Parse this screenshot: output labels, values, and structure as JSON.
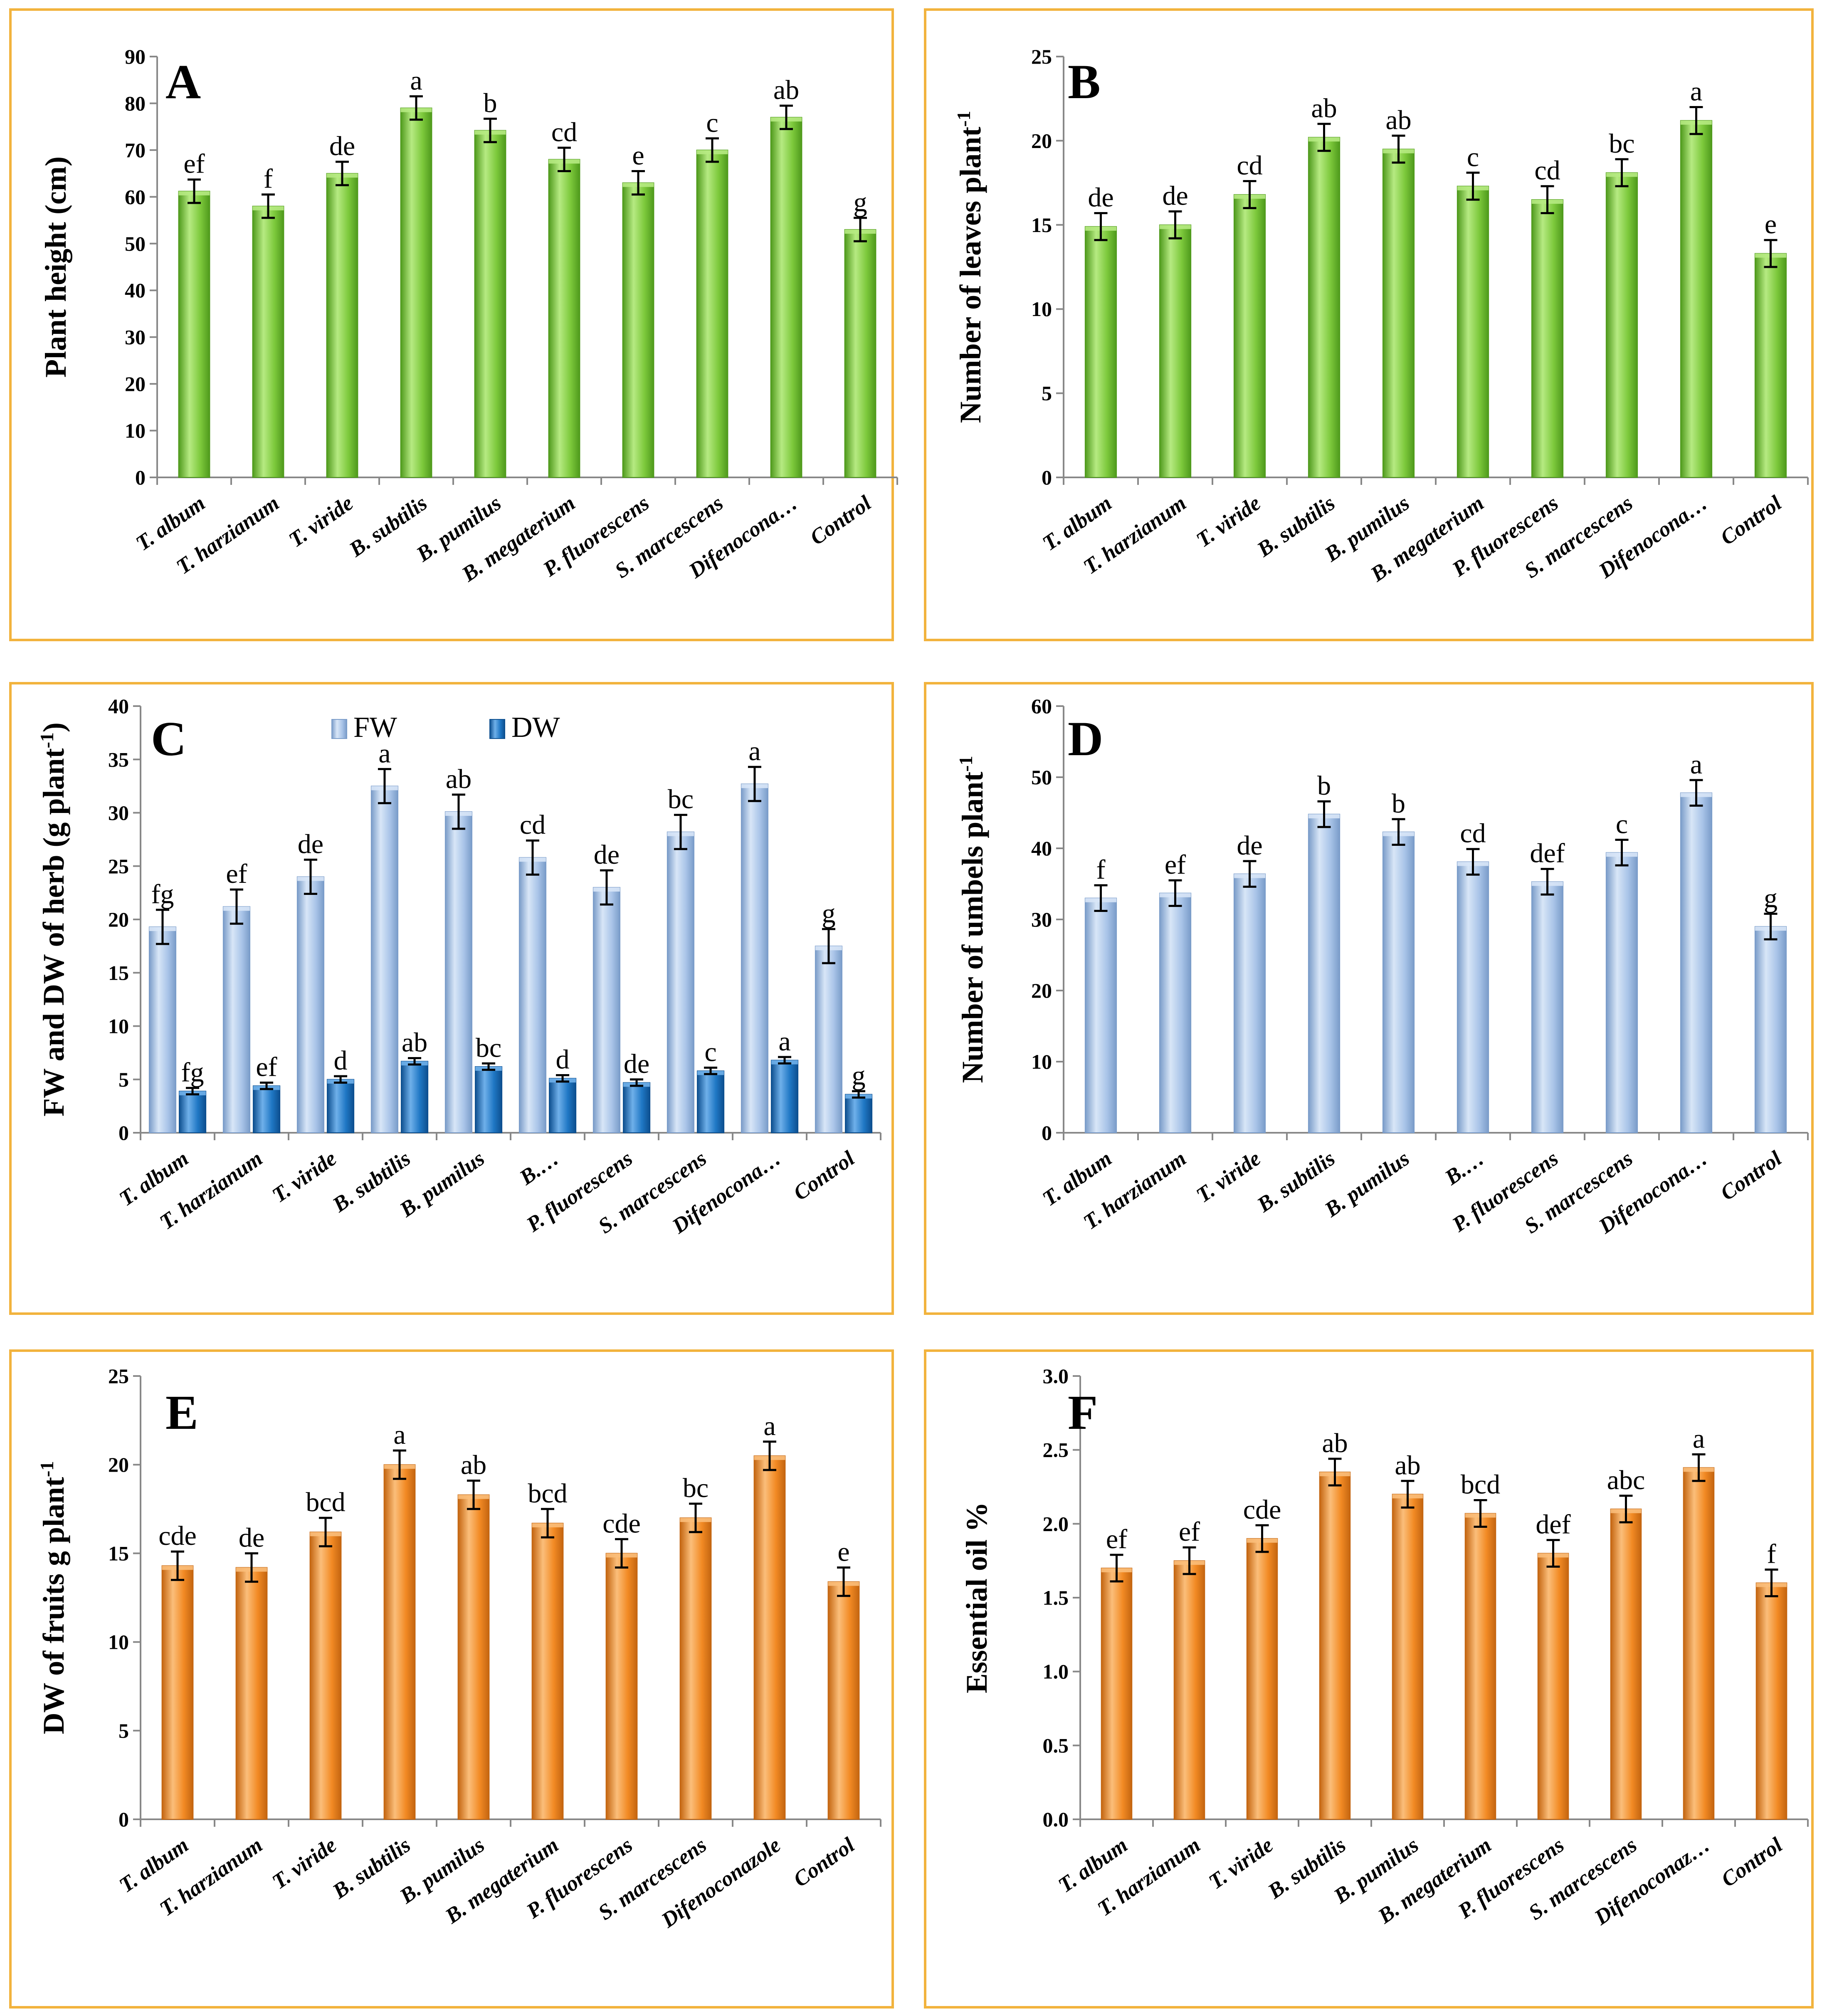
{
  "colors": {
    "green": "#7dc93c",
    "green_light": "#b6ea82",
    "green_dark": "#4f9a1c",
    "blue_fw": "#a9c4e8",
    "blue_fw_light": "#d8e6f7",
    "blue_fw_dark": "#7a9cc9",
    "blue_dw": "#1f77c4",
    "blue_dw_light": "#6fb0ea",
    "blue_dw_dark": "#0d4f8f",
    "orange": "#f28a24",
    "orange_light": "#fbbe7a",
    "orange_dark": "#c46510",
    "frame": "#f2b33d"
  },
  "chart_data": [
    {
      "id": "A",
      "panel_label": "A",
      "type": "bar",
      "ylabel": "Plant height (cm)",
      "ylim": [
        0,
        90
      ],
      "yticks": [
        0,
        10,
        20,
        30,
        40,
        50,
        60,
        70,
        80,
        90
      ],
      "tick_labels": [
        "0",
        "10",
        "20",
        "30",
        "40",
        "50",
        "60",
        "70",
        "80",
        "90"
      ],
      "categories": [
        "T. album",
        "T. harzianum",
        "T. viride",
        "B. subtilis",
        "B. pumilus",
        "B. megaterium",
        "P. fluorescens",
        "S. marcescens",
        "Difenocona…",
        "Control"
      ],
      "series": [
        {
          "name": "Plant height",
          "color": "green",
          "values": [
            61.2,
            58.0,
            65.0,
            79.0,
            74.2,
            68.0,
            63.0,
            70.0,
            77.0,
            53.0
          ],
          "errors": [
            2.5,
            2.5,
            2.5,
            2.5,
            2.5,
            2.5,
            2.5,
            2.5,
            2.5,
            2.5
          ],
          "letters": [
            "ef",
            "f",
            "de",
            "a",
            "b",
            "cd",
            "e",
            "c",
            "ab",
            "g"
          ]
        }
      ]
    },
    {
      "id": "B",
      "panel_label": "B",
      "type": "bar",
      "ylabel": "Number of leaves plant",
      "ylabel_sup": "-1",
      "ylim": [
        0,
        25
      ],
      "yticks": [
        0,
        5,
        10,
        15,
        20,
        25
      ],
      "tick_labels": [
        "0",
        "5",
        "10",
        "15",
        "20",
        "25"
      ],
      "categories": [
        "T. album",
        "T. harzianum",
        "T. viride",
        "B. subtilis",
        "B. pumilus",
        "B. megaterium",
        "P. fluorescens",
        "S. marcescens",
        "Difenocona…",
        "Control"
      ],
      "series": [
        {
          "name": "Leaves",
          "color": "green",
          "values": [
            14.9,
            15.0,
            16.8,
            20.2,
            19.5,
            17.3,
            16.5,
            18.1,
            21.2,
            13.3
          ],
          "errors": [
            0.8,
            0.8,
            0.8,
            0.8,
            0.8,
            0.8,
            0.8,
            0.8,
            0.8,
            0.8
          ],
          "letters": [
            "de",
            "de",
            "cd",
            "ab",
            "ab",
            "c",
            "cd",
            "bc",
            "a",
            "e"
          ]
        }
      ]
    },
    {
      "id": "C",
      "panel_label": "C",
      "type": "bar",
      "ylabel": "FW and DW of herb (g plant",
      "ylabel_sup": "-1",
      "ylabel_suffix": ")",
      "ylim": [
        0,
        40
      ],
      "yticks": [
        0,
        5,
        10,
        15,
        20,
        25,
        30,
        35,
        40
      ],
      "tick_labels": [
        "0",
        "5",
        "10",
        "15",
        "20",
        "25",
        "30",
        "35",
        "40"
      ],
      "categories": [
        "T. album",
        "T. harzianum",
        "T. viride",
        "B. subtilis",
        "B. pumilus",
        "B.…",
        "P. fluorescens",
        "S. marcescens",
        "Difenocona…",
        "Control"
      ],
      "legend": [
        "FW",
        "DW"
      ],
      "series": [
        {
          "name": "FW",
          "color": "blue_fw",
          "values": [
            19.3,
            21.2,
            24.0,
            32.5,
            30.1,
            25.8,
            23.0,
            28.2,
            32.7,
            17.5
          ],
          "errors": [
            1.6,
            1.6,
            1.6,
            1.6,
            1.6,
            1.6,
            1.6,
            1.6,
            1.6,
            1.6
          ],
          "letters": [
            "fg",
            "ef",
            "de",
            "a",
            "ab",
            "cd",
            "de",
            "bc",
            "a",
            "g"
          ]
        },
        {
          "name": "DW",
          "color": "blue_dw",
          "values": [
            3.9,
            4.4,
            5.0,
            6.7,
            6.2,
            5.1,
            4.7,
            5.8,
            6.8,
            3.6
          ],
          "errors": [
            0.3,
            0.3,
            0.3,
            0.3,
            0.3,
            0.3,
            0.3,
            0.3,
            0.3,
            0.3
          ],
          "letters": [
            "fg",
            "ef",
            "d",
            "ab",
            "bc",
            "d",
            "de",
            "c",
            "a",
            "g"
          ]
        }
      ]
    },
    {
      "id": "D",
      "panel_label": "D",
      "type": "bar",
      "ylabel": "Number of umbels plant",
      "ylabel_sup": "-1",
      "ylim": [
        0,
        60
      ],
      "yticks": [
        0,
        10,
        20,
        30,
        40,
        50,
        60
      ],
      "tick_labels": [
        "0",
        "10",
        "20",
        "30",
        "40",
        "50",
        "60"
      ],
      "categories": [
        "T. album",
        "T. harzianum",
        "T. viride",
        "B. subtilis",
        "B. pumilus",
        "B.…",
        "P. fluorescens",
        "S. marcescens",
        "Difenocona…",
        "Control"
      ],
      "series": [
        {
          "name": "Umbels",
          "color": "blue_fw",
          "values": [
            33.0,
            33.7,
            36.4,
            44.8,
            42.3,
            38.1,
            35.3,
            39.4,
            47.8,
            29.0
          ],
          "errors": [
            1.8,
            1.8,
            1.8,
            1.8,
            1.8,
            1.8,
            1.8,
            1.8,
            1.8,
            1.8
          ],
          "letters": [
            "f",
            "ef",
            "de",
            "b",
            "b",
            "cd",
            "def",
            "c",
            "a",
            "g"
          ]
        }
      ]
    },
    {
      "id": "E",
      "panel_label": "E",
      "type": "bar",
      "ylabel": "DW of fruits g plant",
      "ylabel_sup": "-1",
      "ylim": [
        0,
        25
      ],
      "yticks": [
        0,
        5,
        10,
        15,
        20,
        25
      ],
      "tick_labels": [
        "0",
        "5",
        "10",
        "15",
        "20",
        "25"
      ],
      "categories": [
        "T. album",
        "T. harzianum",
        "T. viride",
        "B. subtilis",
        "B. pumilus",
        "B. megaterium",
        "P. fluorescens",
        "S. marcescens",
        "Difenoconazole",
        "Control"
      ],
      "series": [
        {
          "name": "Fruits DW",
          "color": "orange",
          "values": [
            14.3,
            14.2,
            16.2,
            20.0,
            18.3,
            16.7,
            15.0,
            17.0,
            20.5,
            13.4
          ],
          "errors": [
            0.8,
            0.8,
            0.8,
            0.8,
            0.8,
            0.8,
            0.8,
            0.8,
            0.8,
            0.8
          ],
          "letters": [
            "cde",
            "de",
            "bcd",
            "a",
            "ab",
            "bcd",
            "cde",
            "bc",
            "a",
            "e"
          ]
        }
      ]
    },
    {
      "id": "F",
      "panel_label": "F",
      "type": "bar",
      "ylabel": "Essential oil %",
      "ylim": [
        0,
        3.0
      ],
      "yticks": [
        0,
        0.5,
        1.0,
        1.5,
        2.0,
        2.5,
        3.0
      ],
      "tick_labels": [
        "0.0",
        "0.5",
        "1.0",
        "1.5",
        "2.0",
        "2.5",
        "3.0"
      ],
      "categories": [
        "T. album",
        "T. harzianum",
        "T. viride",
        "B. subtilis",
        "B. pumilus",
        "B. megaterium",
        "P. fluorescens",
        "S. marcescens",
        "Difenoconaz…",
        "Control"
      ],
      "series": [
        {
          "name": "Essential oil",
          "color": "orange",
          "values": [
            1.7,
            1.75,
            1.9,
            2.35,
            2.2,
            2.07,
            1.8,
            2.1,
            2.38,
            1.6
          ],
          "errors": [
            0.09,
            0.09,
            0.09,
            0.09,
            0.09,
            0.09,
            0.09,
            0.09,
            0.09,
            0.09
          ],
          "letters": [
            "ef",
            "ef",
            "cde",
            "ab",
            "ab",
            "bcd",
            "def",
            "abc",
            "a",
            "f"
          ]
        }
      ]
    }
  ]
}
